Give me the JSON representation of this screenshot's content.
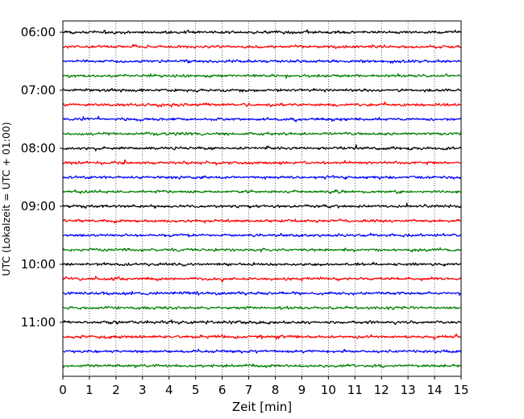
{
  "chart_data": {
    "type": "line",
    "title": "",
    "xlabel": "Zeit  [min]",
    "ylabel": "UTC (Lokalzeit = UTC + 01:00)",
    "xlim": [
      0,
      15
    ],
    "x_ticks": [
      0,
      1,
      2,
      3,
      4,
      5,
      6,
      7,
      8,
      9,
      10,
      11,
      12,
      13,
      14,
      15
    ],
    "x_tick_labels": [
      "0",
      "1",
      "2",
      "3",
      "4",
      "5",
      "6",
      "7",
      "8",
      "9",
      "10",
      "11",
      "12",
      "13",
      "14",
      "15"
    ],
    "y_tick_labels": [
      "06:00",
      "07:00",
      "08:00",
      "09:00",
      "10:00",
      "11:00"
    ],
    "y_tick_row_index": [
      0,
      4,
      8,
      12,
      16,
      20
    ],
    "vertical_grid": true,
    "grid_style": "dotted",
    "colors": [
      "#000000",
      "#ff0000",
      "#0000ff",
      "#008000"
    ],
    "series": [
      {
        "start": "06:00",
        "color": "#000000"
      },
      {
        "start": "06:15",
        "color": "#ff0000"
      },
      {
        "start": "06:30",
        "color": "#0000ff"
      },
      {
        "start": "06:45",
        "color": "#008000"
      },
      {
        "start": "07:00",
        "color": "#000000"
      },
      {
        "start": "07:15",
        "color": "#ff0000"
      },
      {
        "start": "07:30",
        "color": "#0000ff"
      },
      {
        "start": "07:45",
        "color": "#008000"
      },
      {
        "start": "08:00",
        "color": "#000000"
      },
      {
        "start": "08:15",
        "color": "#ff0000"
      },
      {
        "start": "08:30",
        "color": "#0000ff"
      },
      {
        "start": "08:45",
        "color": "#008000"
      },
      {
        "start": "09:00",
        "color": "#000000"
      },
      {
        "start": "09:15",
        "color": "#ff0000"
      },
      {
        "start": "09:30",
        "color": "#0000ff"
      },
      {
        "start": "09:45",
        "color": "#008000"
      },
      {
        "start": "10:00",
        "color": "#000000"
      },
      {
        "start": "10:15",
        "color": "#ff0000"
      },
      {
        "start": "10:30",
        "color": "#0000ff"
      },
      {
        "start": "10:45",
        "color": "#008000"
      },
      {
        "start": "11:00",
        "color": "#000000"
      },
      {
        "start": "11:15",
        "color": "#ff0000"
      },
      {
        "start": "11:30",
        "color": "#0000ff"
      },
      {
        "start": "11:45",
        "color": "#008000"
      }
    ]
  }
}
